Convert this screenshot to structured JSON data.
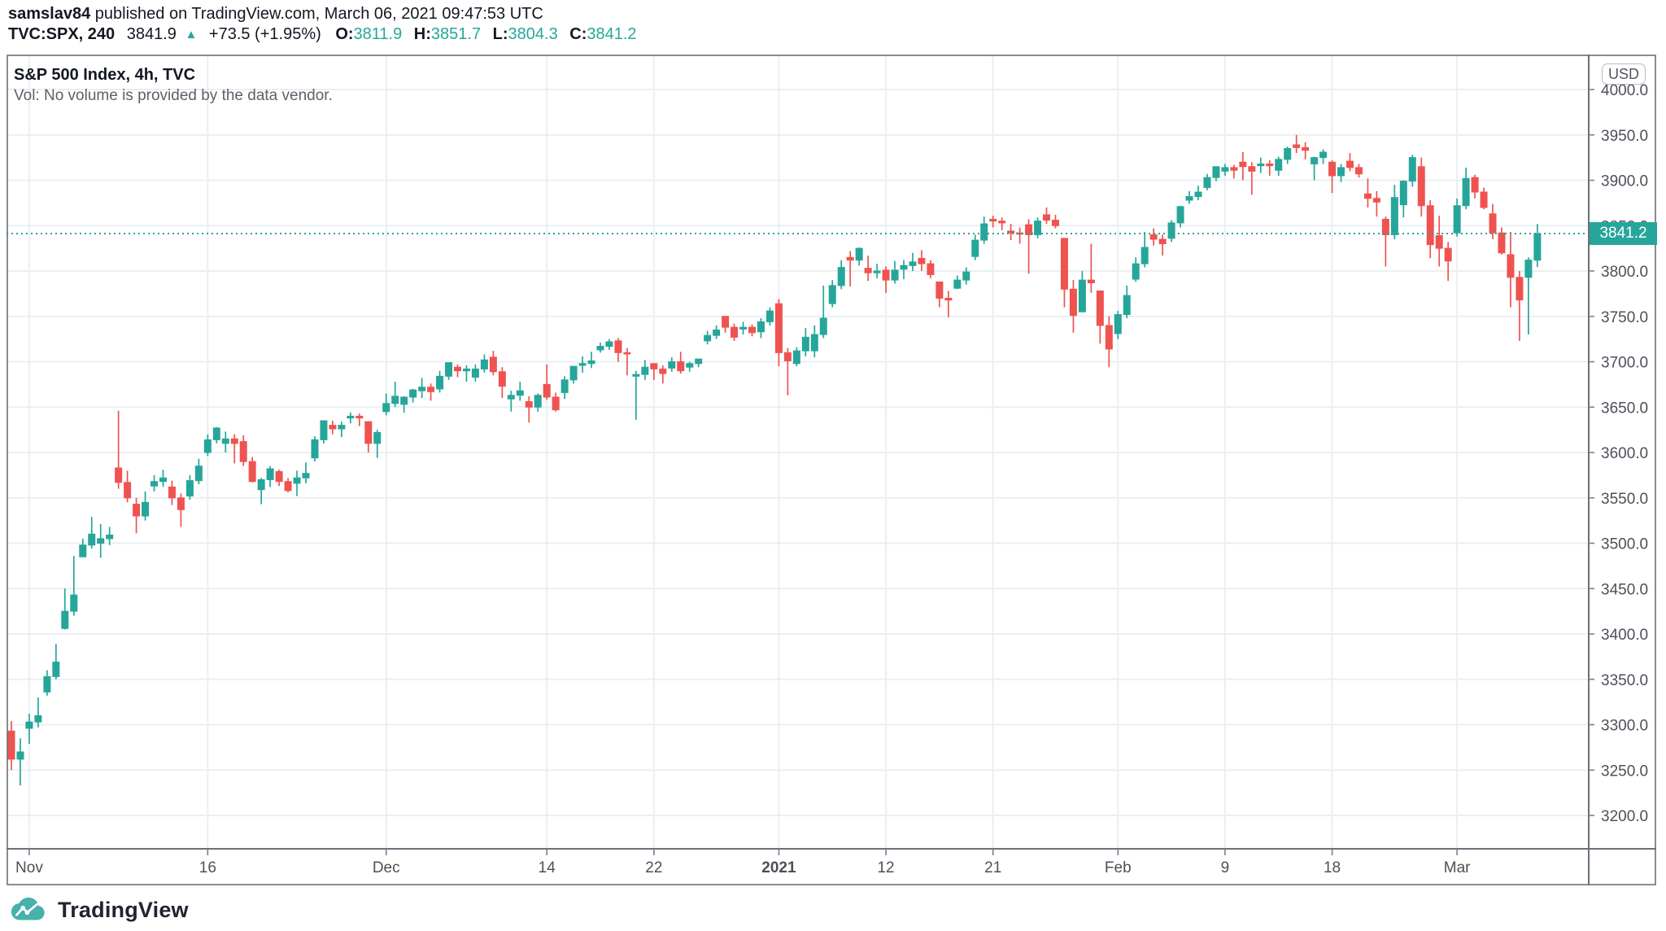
{
  "header": {
    "author": "samslav84",
    "byline_rest": " published on TradingView.com, March 06, 2021 09:47:53 UTC",
    "symbol": "TVC:SPX, 240",
    "last": "3841.9",
    "up_arrow": "▲",
    "change": "+73.5 (+1.95%)",
    "o_label": "O:",
    "o_value": "3811.9",
    "h_label": "H:",
    "h_value": "3851.7",
    "l_label": "L:",
    "l_value": "3804.3",
    "c_label": "C:",
    "c_value": "3841.2"
  },
  "chart": {
    "title": "S&P 500 Index, 4h, TVC",
    "vol_note": "Vol: No volume is provided by the data vendor.",
    "currency_badge": "USD",
    "last_price_label": "3841.2"
  },
  "footer": {
    "brand": "TradingView"
  },
  "colors": {
    "up": "#26a69a",
    "down": "#ef5350",
    "grid": "#e9eff5",
    "frame": "#6b6f79",
    "tick": "#7a7e87",
    "axis_text": "#4c5058",
    "dark_text": "#131722",
    "muted_text": "#5d6067",
    "badge_bg": "#26a69a",
    "logo_teal": "#47b1aa"
  },
  "chart_data": {
    "type": "candlestick",
    "title": "S&P 500 Index, 4h, TVC",
    "symbol": "TVC:SPX",
    "interval": "240",
    "currency": "USD",
    "last_price": 3841.2,
    "price_axis": {
      "min": 3150,
      "max": 4050,
      "tick_step": 50,
      "tick_labels": [
        "4000.0",
        "3950.0",
        "3900.0",
        "3850.0",
        "3800.0",
        "3750.0",
        "3700.0",
        "3650.0",
        "3600.0",
        "3550.0",
        "3500.0",
        "3450.0",
        "3400.0",
        "3350.0",
        "3300.0",
        "3250.0",
        "3200.0"
      ]
    },
    "time_ticks": [
      {
        "label": "Nov",
        "bar": 2,
        "bold": false
      },
      {
        "label": "16",
        "bar": 22,
        "bold": false
      },
      {
        "label": "Dec",
        "bar": 42,
        "bold": false
      },
      {
        "label": "14",
        "bar": 60,
        "bold": false
      },
      {
        "label": "22",
        "bar": 72,
        "bold": false
      },
      {
        "label": "2021",
        "bar": 86,
        "bold": true
      },
      {
        "label": "12",
        "bar": 98,
        "bold": false
      },
      {
        "label": "21",
        "bar": 110,
        "bold": false
      },
      {
        "label": "Feb",
        "bar": 124,
        "bold": false
      },
      {
        "label": "9",
        "bar": 136,
        "bold": false
      },
      {
        "label": "18",
        "bar": 148,
        "bold": false
      },
      {
        "label": "Mar",
        "bar": 162,
        "bold": false
      }
    ],
    "bars": [
      [
        3293,
        3304,
        3250,
        3262
      ],
      [
        3262,
        3285,
        3233,
        3270
      ],
      [
        3296,
        3312,
        3279,
        3303
      ],
      [
        3303,
        3330,
        3297,
        3310
      ],
      [
        3336,
        3360,
        3332,
        3353
      ],
      [
        3353,
        3389,
        3350,
        3369
      ],
      [
        3406,
        3450,
        3405,
        3425
      ],
      [
        3425,
        3486,
        3420,
        3443
      ],
      [
        3485,
        3505,
        3485,
        3498
      ],
      [
        3498,
        3529,
        3494,
        3510
      ],
      [
        3500,
        3521,
        3484,
        3505
      ],
      [
        3505,
        3518,
        3498,
        3509
      ],
      [
        3583,
        3646,
        3560,
        3567
      ],
      [
        3567,
        3580,
        3545,
        3550
      ],
      [
        3543,
        3550,
        3511,
        3530
      ],
      [
        3530,
        3557,
        3525,
        3545
      ],
      [
        3563,
        3575,
        3557,
        3568
      ],
      [
        3568,
        3581,
        3562,
        3572
      ],
      [
        3562,
        3569,
        3542,
        3550
      ],
      [
        3550,
        3555,
        3518,
        3537
      ],
      [
        3552,
        3575,
        3548,
        3569
      ],
      [
        3569,
        3593,
        3565,
        3585
      ],
      [
        3600,
        3620,
        3596,
        3614
      ],
      [
        3614,
        3628,
        3610,
        3627
      ],
      [
        3610,
        3623,
        3600,
        3615
      ],
      [
        3615,
        3620,
        3588,
        3610
      ],
      [
        3612,
        3619,
        3585,
        3590
      ],
      [
        3590,
        3595,
        3567,
        3568
      ],
      [
        3559,
        3572,
        3543,
        3570
      ],
      [
        3570,
        3585,
        3562,
        3582
      ],
      [
        3579,
        3581,
        3563,
        3568
      ],
      [
        3568,
        3572,
        3556,
        3558
      ],
      [
        3566,
        3580,
        3552,
        3572
      ],
      [
        3572,
        3589,
        3566,
        3577
      ],
      [
        3594,
        3618,
        3590,
        3614
      ],
      [
        3614,
        3635,
        3610,
        3635
      ],
      [
        3630,
        3635,
        3620,
        3626
      ],
      [
        3626,
        3634,
        3617,
        3630
      ],
      [
        3638,
        3644,
        3632,
        3640
      ],
      [
        3640,
        3643,
        3629,
        3638
      ],
      [
        3634,
        3634,
        3600,
        3610
      ],
      [
        3610,
        3625,
        3594,
        3622
      ],
      [
        3645,
        3665,
        3641,
        3654
      ],
      [
        3654,
        3678,
        3650,
        3662
      ],
      [
        3653,
        3662,
        3644,
        3661
      ],
      [
        3661,
        3670,
        3655,
        3669
      ],
      [
        3668,
        3682,
        3660,
        3672
      ],
      [
        3672,
        3676,
        3657,
        3667
      ],
      [
        3670,
        3690,
        3666,
        3684
      ],
      [
        3684,
        3699,
        3680,
        3699
      ],
      [
        3694,
        3697,
        3683,
        3690
      ],
      [
        3690,
        3696,
        3678,
        3692
      ],
      [
        3683,
        3697,
        3678,
        3692
      ],
      [
        3692,
        3708,
        3688,
        3702
      ],
      [
        3705,
        3712,
        3685,
        3689
      ],
      [
        3689,
        3694,
        3660,
        3673
      ],
      [
        3659,
        3668,
        3645,
        3663
      ],
      [
        3663,
        3678,
        3657,
        3668
      ],
      [
        3656,
        3662,
        3633,
        3650
      ],
      [
        3650,
        3665,
        3645,
        3663
      ],
      [
        3675,
        3697,
        3658,
        3661
      ],
      [
        3661,
        3666,
        3645,
        3647
      ],
      [
        3666,
        3684,
        3659,
        3680
      ],
      [
        3680,
        3695,
        3676,
        3695
      ],
      [
        3696,
        3706,
        3688,
        3698
      ],
      [
        3698,
        3711,
        3693,
        3701
      ],
      [
        3713,
        3721,
        3710,
        3717
      ],
      [
        3717,
        3725,
        3713,
        3722
      ],
      [
        3723,
        3726,
        3700,
        3710
      ],
      [
        3710,
        3715,
        3685,
        3709
      ],
      [
        3684,
        3690,
        3636,
        3686
      ],
      [
        3686,
        3702,
        3680,
        3694
      ],
      [
        3698,
        3698,
        3680,
        3692
      ],
      [
        3692,
        3696,
        3676,
        3687
      ],
      [
        3693,
        3705,
        3689,
        3700
      ],
      [
        3700,
        3711,
        3687,
        3690
      ],
      [
        3694,
        3700,
        3689,
        3698
      ],
      [
        3698,
        3703,
        3694,
        3703
      ],
      [
        3723,
        3734,
        3719,
        3729
      ],
      [
        3729,
        3740,
        3725,
        3735
      ],
      [
        3750,
        3750,
        3732,
        3738
      ],
      [
        3738,
        3742,
        3723,
        3727
      ],
      [
        3736,
        3744,
        3730,
        3738
      ],
      [
        3738,
        3741,
        3728,
        3732
      ],
      [
        3733,
        3748,
        3726,
        3744
      ],
      [
        3744,
        3760,
        3740,
        3756
      ],
      [
        3764,
        3769,
        3695,
        3710
      ],
      [
        3710,
        3715,
        3663,
        3701
      ],
      [
        3698,
        3716,
        3695,
        3712
      ],
      [
        3712,
        3737,
        3706,
        3727
      ],
      [
        3712,
        3740,
        3705,
        3730
      ],
      [
        3730,
        3784,
        3726,
        3748
      ],
      [
        3764,
        3790,
        3760,
        3784
      ],
      [
        3784,
        3812,
        3780,
        3804
      ],
      [
        3815,
        3822,
        3783,
        3812
      ],
      [
        3812,
        3826,
        3806,
        3825
      ],
      [
        3803,
        3817,
        3789,
        3798
      ],
      [
        3798,
        3808,
        3792,
        3800
      ],
      [
        3801,
        3805,
        3776,
        3790
      ],
      [
        3790,
        3811,
        3786,
        3801
      ],
      [
        3802,
        3812,
        3791,
        3806
      ],
      [
        3806,
        3820,
        3800,
        3810
      ],
      [
        3814,
        3823,
        3800,
        3808
      ],
      [
        3808,
        3812,
        3792,
        3796
      ],
      [
        3788,
        3788,
        3760,
        3770
      ],
      [
        3770,
        3778,
        3749,
        3768
      ],
      [
        3781,
        3795,
        3780,
        3790
      ],
      [
        3790,
        3804,
        3785,
        3799
      ],
      [
        3816,
        3840,
        3812,
        3834
      ],
      [
        3834,
        3860,
        3830,
        3852
      ],
      [
        3857,
        3861,
        3848,
        3855
      ],
      [
        3855,
        3859,
        3845,
        3853
      ],
      [
        3844,
        3852,
        3834,
        3842
      ],
      [
        3842,
        3848,
        3830,
        3841
      ],
      [
        3851,
        3857,
        3797,
        3840
      ],
      [
        3840,
        3859,
        3836,
        3855
      ],
      [
        3862,
        3870,
        3852,
        3856
      ],
      [
        3856,
        3862,
        3847,
        3850
      ],
      [
        3836,
        3836,
        3760,
        3780
      ],
      [
        3780,
        3790,
        3732,
        3751
      ],
      [
        3755,
        3800,
        3755,
        3790
      ],
      [
        3790,
        3830,
        3776,
        3787
      ],
      [
        3778,
        3778,
        3720,
        3740
      ],
      [
        3740,
        3750,
        3694,
        3714
      ],
      [
        3731,
        3756,
        3725,
        3752
      ],
      [
        3752,
        3784,
        3748,
        3773
      ],
      [
        3791,
        3815,
        3788,
        3808
      ],
      [
        3808,
        3843,
        3804,
        3826
      ],
      [
        3840,
        3847,
        3828,
        3835
      ],
      [
        3835,
        3840,
        3817,
        3830
      ],
      [
        3836,
        3856,
        3832,
        3853
      ],
      [
        3853,
        3872,
        3848,
        3871
      ],
      [
        3878,
        3888,
        3874,
        3882
      ],
      [
        3882,
        3894,
        3878,
        3887
      ],
      [
        3892,
        3907,
        3889,
        3903
      ],
      [
        3903,
        3915,
        3899,
        3915
      ],
      [
        3910,
        3918,
        3905,
        3914
      ],
      [
        3914,
        3917,
        3902,
        3911
      ],
      [
        3920,
        3931,
        3900,
        3915
      ],
      [
        3915,
        3920,
        3884,
        3910
      ],
      [
        3916,
        3925,
        3908,
        3918
      ],
      [
        3918,
        3922,
        3905,
        3916
      ],
      [
        3911,
        3926,
        3905,
        3923
      ],
      [
        3923,
        3937,
        3918,
        3935
      ],
      [
        3939,
        3950,
        3930,
        3936
      ],
      [
        3936,
        3942,
        3923,
        3933
      ],
      [
        3918,
        3926,
        3900,
        3925
      ],
      [
        3925,
        3934,
        3918,
        3931
      ],
      [
        3920,
        3922,
        3886,
        3905
      ],
      [
        3905,
        3918,
        3898,
        3914
      ],
      [
        3921,
        3930,
        3910,
        3914
      ],
      [
        3914,
        3918,
        3903,
        3907
      ],
      [
        3885,
        3902,
        3870,
        3880
      ],
      [
        3880,
        3888,
        3860,
        3876
      ],
      [
        3857,
        3860,
        3805,
        3840
      ],
      [
        3840,
        3895,
        3835,
        3881
      ],
      [
        3873,
        3900,
        3859,
        3899
      ],
      [
        3899,
        3928,
        3893,
        3925
      ],
      [
        3915,
        3925,
        3860,
        3872
      ],
      [
        3872,
        3878,
        3814,
        3829
      ],
      [
        3839,
        3861,
        3805,
        3825
      ],
      [
        3825,
        3832,
        3789,
        3811
      ],
      [
        3842,
        3880,
        3838,
        3872
      ],
      [
        3872,
        3914,
        3868,
        3902
      ],
      [
        3903,
        3906,
        3880,
        3887
      ],
      [
        3887,
        3892,
        3868,
        3870
      ],
      [
        3863,
        3874,
        3835,
        3842
      ],
      [
        3842,
        3848,
        3818,
        3820
      ],
      [
        3818,
        3843,
        3760,
        3793
      ],
      [
        3793,
        3800,
        3723,
        3768
      ],
      [
        3793,
        3815,
        3730,
        3812
      ],
      [
        3811.9,
        3851.7,
        3804.3,
        3841.2
      ]
    ]
  }
}
